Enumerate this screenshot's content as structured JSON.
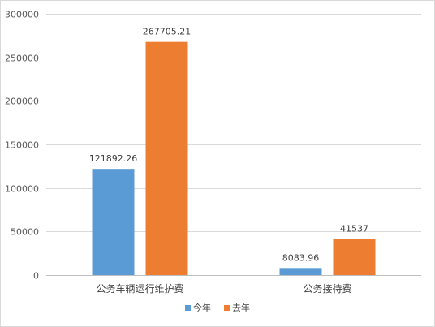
{
  "chart_data": {
    "type": "bar",
    "categories": [
      "公务车辆运行维护费",
      "公务接待费"
    ],
    "series": [
      {
        "name": "今年",
        "values": [
          121892.26,
          8083.96
        ],
        "labels": [
          "121892.26",
          "8083.96"
        ],
        "color": "#5B9BD5"
      },
      {
        "name": "去年",
        "values": [
          267705.21,
          41537
        ],
        "labels": [
          "267705.21",
          "41537"
        ],
        "color": "#ED7D31"
      }
    ],
    "yticks": [
      "0",
      "50000",
      "100000",
      "150000",
      "200000",
      "250000",
      "300000"
    ],
    "ylim": [
      0,
      300000
    ],
    "grid": true,
    "legend": "bottom"
  }
}
